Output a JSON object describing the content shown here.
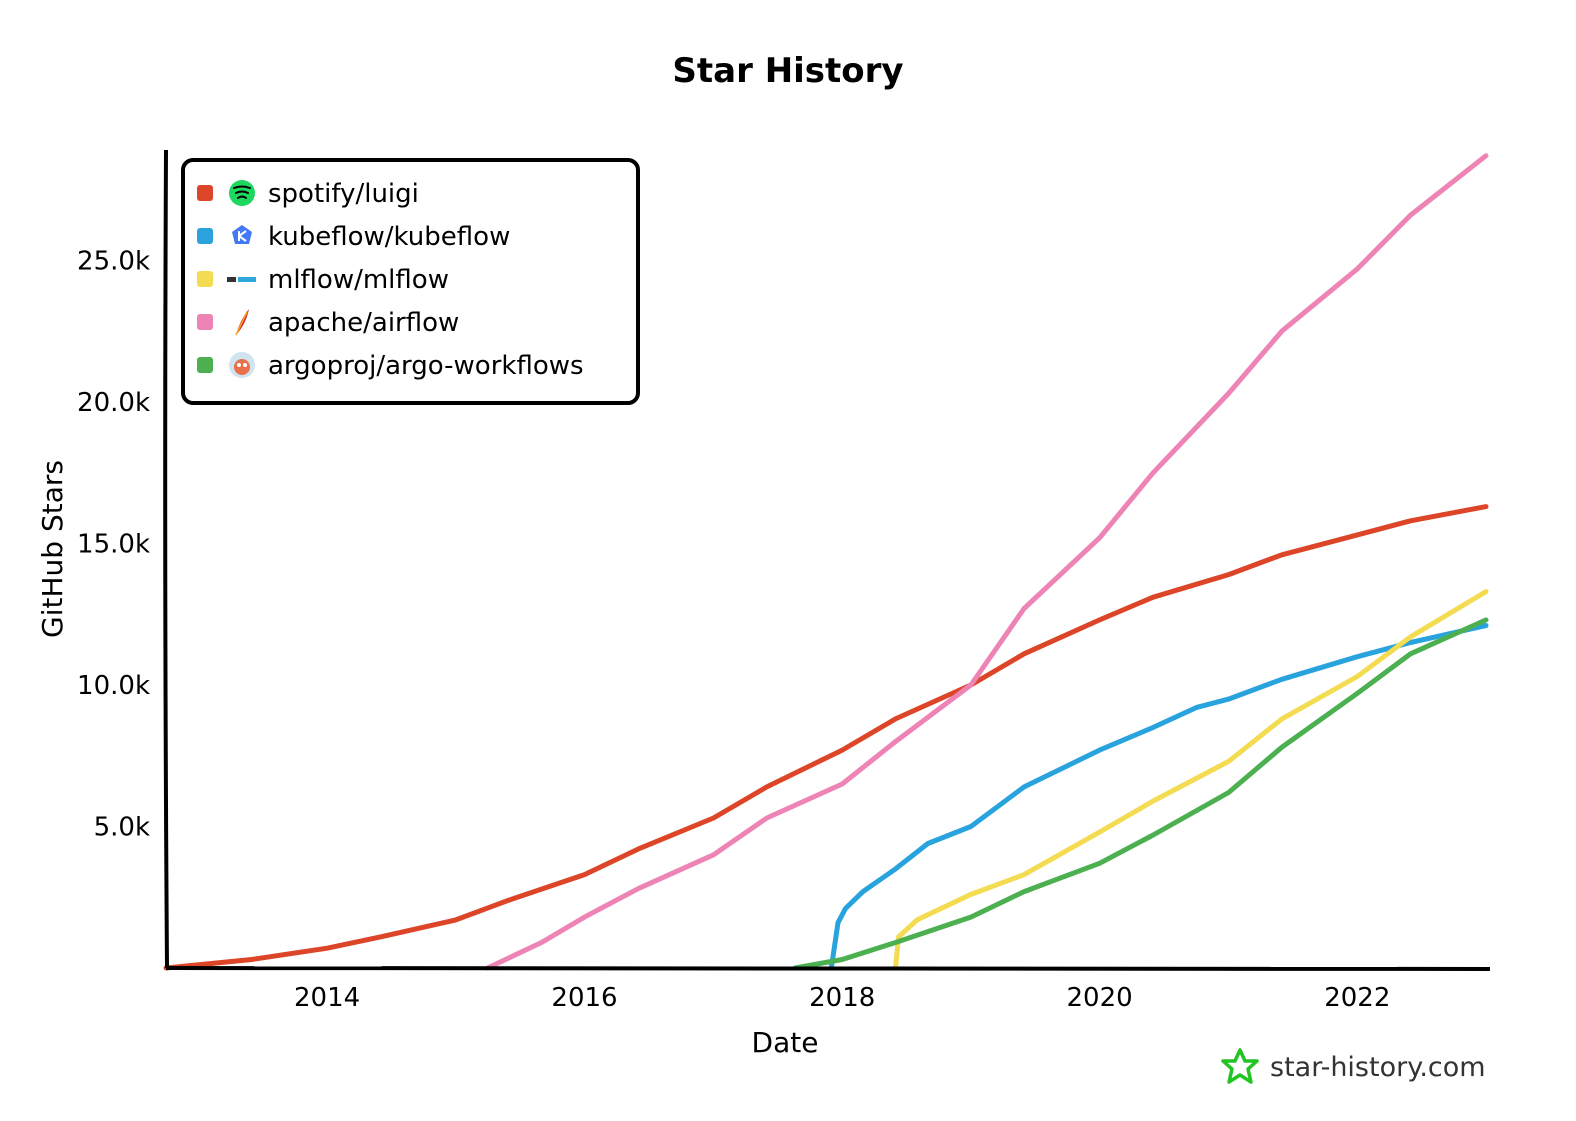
{
  "chart_data": {
    "type": "line",
    "title": "Star History",
    "xlabel": "Date",
    "ylabel": "GitHub Stars",
    "xlim": [
      "2012-10-01",
      "2023-01-01"
    ],
    "ylim": [
      0,
      28900
    ],
    "x_ticks": [
      "2014",
      "2016",
      "2018",
      "2020",
      "2022"
    ],
    "y_ticks": [
      {
        "value": 5000,
        "label": "5.0k"
      },
      {
        "value": 10000,
        "label": "10.0k"
      },
      {
        "value": 15000,
        "label": "15.0k"
      },
      {
        "value": 20000,
        "label": "20.0k"
      },
      {
        "value": 25000,
        "label": "25.0k"
      }
    ],
    "legend": "top-left",
    "grid": false,
    "series": [
      {
        "name": "spotify/luigi",
        "color": "#dd4528",
        "icon": "spotify-logo-icon",
        "points": [
          [
            "2012-10-01",
            0
          ],
          [
            "2013-06-01",
            300
          ],
          [
            "2014-01-01",
            700
          ],
          [
            "2014-06-01",
            1100
          ],
          [
            "2015-01-01",
            1700
          ],
          [
            "2015-06-01",
            2400
          ],
          [
            "2016-01-01",
            3300
          ],
          [
            "2016-06-01",
            4200
          ],
          [
            "2017-01-01",
            5300
          ],
          [
            "2017-06-01",
            6400
          ],
          [
            "2018-01-01",
            7700
          ],
          [
            "2018-06-01",
            8800
          ],
          [
            "2019-01-01",
            10000
          ],
          [
            "2019-06-01",
            11100
          ],
          [
            "2020-01-01",
            12300
          ],
          [
            "2020-06-01",
            13100
          ],
          [
            "2021-01-01",
            13900
          ],
          [
            "2021-06-01",
            14600
          ],
          [
            "2022-01-01",
            15300
          ],
          [
            "2022-06-01",
            15800
          ],
          [
            "2023-01-01",
            16300
          ]
        ]
      },
      {
        "name": "kubeflow/kubeflow",
        "color": "#28a3dd",
        "icon": "kubeflow-logo-icon",
        "points": [
          [
            "2017-12-01",
            0
          ],
          [
            "2017-12-20",
            1600
          ],
          [
            "2018-01-10",
            2100
          ],
          [
            "2018-03-01",
            2700
          ],
          [
            "2018-06-01",
            3500
          ],
          [
            "2018-09-01",
            4400
          ],
          [
            "2019-01-01",
            5000
          ],
          [
            "2019-06-01",
            6400
          ],
          [
            "2020-01-01",
            7700
          ],
          [
            "2020-06-01",
            8500
          ],
          [
            "2020-10-01",
            9200
          ],
          [
            "2021-01-01",
            9500
          ],
          [
            "2021-06-01",
            10200
          ],
          [
            "2022-01-01",
            11000
          ],
          [
            "2022-06-01",
            11500
          ],
          [
            "2023-01-01",
            12100
          ]
        ]
      },
      {
        "name": "mlflow/mlflow",
        "color": "#f3db52",
        "icon": "mlflow-logo-icon",
        "points": [
          [
            "2018-06-01",
            0
          ],
          [
            "2018-06-10",
            1100
          ],
          [
            "2018-08-01",
            1700
          ],
          [
            "2019-01-01",
            2600
          ],
          [
            "2019-06-01",
            3300
          ],
          [
            "2020-01-01",
            4800
          ],
          [
            "2020-06-01",
            5900
          ],
          [
            "2021-01-01",
            7300
          ],
          [
            "2021-06-01",
            8800
          ],
          [
            "2022-01-01",
            10300
          ],
          [
            "2022-06-01",
            11700
          ],
          [
            "2023-01-01",
            13300
          ]
        ]
      },
      {
        "name": "apache/airflow",
        "color": "#ed84b5",
        "icon": "apache-feather-icon",
        "points": [
          [
            "2015-04-01",
            0
          ],
          [
            "2015-09-01",
            900
          ],
          [
            "2016-01-01",
            1800
          ],
          [
            "2016-06-01",
            2800
          ],
          [
            "2017-01-01",
            4000
          ],
          [
            "2017-06-01",
            5300
          ],
          [
            "2018-01-01",
            6500
          ],
          [
            "2018-06-01",
            8000
          ],
          [
            "2019-01-01",
            10000
          ],
          [
            "2019-06-01",
            12700
          ],
          [
            "2020-01-01",
            15200
          ],
          [
            "2020-06-01",
            17500
          ],
          [
            "2021-01-01",
            20300
          ],
          [
            "2021-06-01",
            22500
          ],
          [
            "2022-01-01",
            24700
          ],
          [
            "2022-06-01",
            26600
          ],
          [
            "2023-01-01",
            28700
          ]
        ]
      },
      {
        "name": "argoproj/argo-workflows",
        "color": "#4cb050",
        "icon": "argo-logo-icon",
        "points": [
          [
            "2017-08-20",
            0
          ],
          [
            "2018-01-01",
            300
          ],
          [
            "2018-06-01",
            900
          ],
          [
            "2019-01-01",
            1800
          ],
          [
            "2019-06-01",
            2700
          ],
          [
            "2020-01-01",
            3700
          ],
          [
            "2020-06-01",
            4700
          ],
          [
            "2021-01-01",
            6200
          ],
          [
            "2021-06-01",
            7800
          ],
          [
            "2022-01-01",
            9700
          ],
          [
            "2022-06-01",
            11100
          ],
          [
            "2023-01-01",
            12300
          ]
        ]
      }
    ]
  },
  "watermark": {
    "text": "star-history.com",
    "icon": "star-history-logo-icon"
  }
}
